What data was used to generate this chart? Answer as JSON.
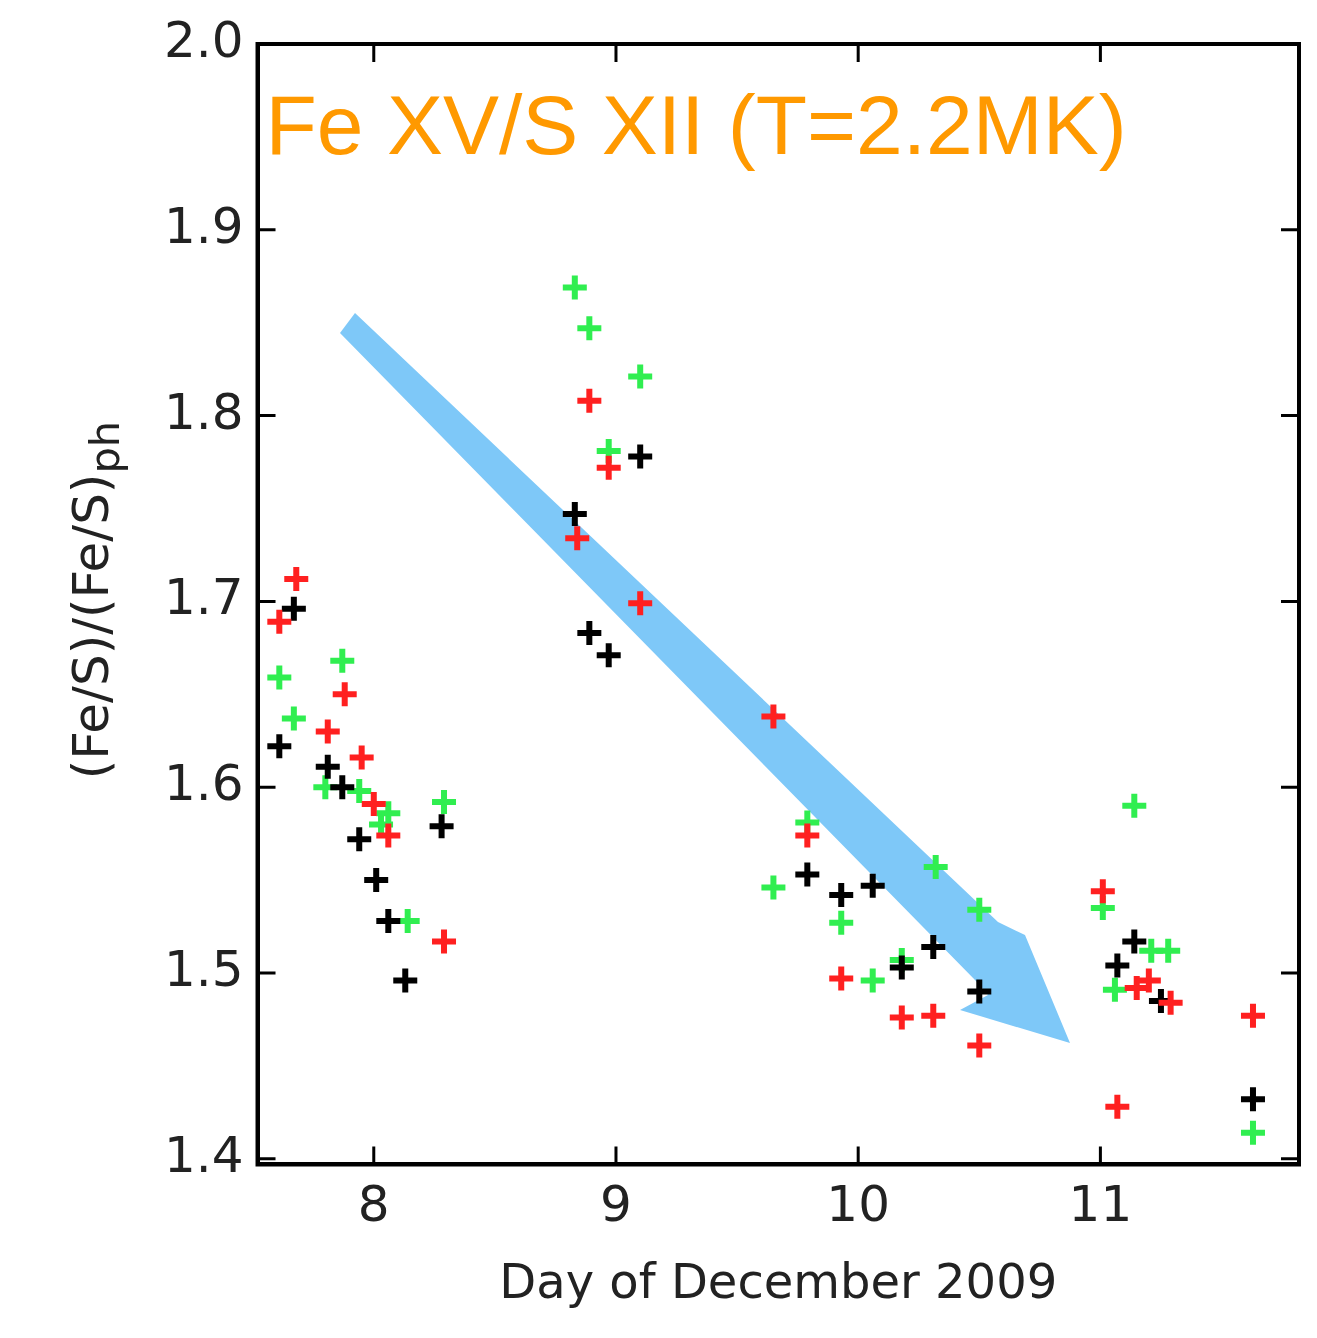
{
  "chart_data": {
    "type": "scatter",
    "xlabel": "Day of December 2009",
    "ylabel": "(Fe/S)/(Fe/S)$_{ph}$",
    "annotations": [
      "Fe XV/S XII (T=2.2MK)"
    ],
    "xlim": [
      7.52,
      11.82
    ],
    "xticks": [
      8,
      9,
      10,
      11
    ],
    "ylim": [
      1.397,
      2.0
    ],
    "yticks": [
      1.4,
      1.5,
      1.6,
      1.7,
      1.8,
      1.9,
      {
        "value": 2,
        "label": "2.0"
      }
    ],
    "grid": false,
    "legend": false,
    "marker": "cross",
    "series": [
      {
        "color": "#ff2020",
        "x": [
          7.61,
          7.68,
          7.81,
          7.88,
          7.95,
          8.0,
          8.06,
          8.29,
          8.89,
          8.97,
          8.84,
          9.1,
          9.65,
          9.79,
          9.93,
          10.18,
          10.31,
          10.5,
          11.01,
          11.15,
          11.2,
          11.29,
          11.63,
          11.07
        ],
        "values": [
          1.689,
          1.712,
          1.63,
          1.65,
          1.616,
          1.591,
          1.574,
          1.517,
          1.808,
          1.772,
          1.734,
          1.699,
          1.638,
          1.574,
          1.497,
          1.476,
          1.477,
          1.461,
          1.544,
          1.492,
          1.496,
          1.484,
          1.477,
          1.428
        ]
      },
      {
        "color": "#000000",
        "x": [
          7.67,
          7.61,
          7.81,
          7.87,
          7.94,
          8.01,
          8.06,
          8.13,
          8.28,
          9.1,
          8.83,
          8.89,
          8.97,
          9.79,
          9.93,
          10.06,
          10.18,
          10.31,
          10.5,
          11.14,
          11.07,
          11.25,
          11.63
        ],
        "values": [
          1.696,
          1.622,
          1.611,
          1.6,
          1.572,
          1.55,
          1.528,
          1.496,
          1.579,
          1.778,
          1.747,
          1.683,
          1.671,
          1.553,
          1.542,
          1.547,
          1.503,
          1.514,
          1.49,
          1.517,
          1.504,
          1.485,
          1.432
        ]
      },
      {
        "color": "#30ee50",
        "x": [
          7.87,
          7.61,
          7.67,
          7.8,
          7.94,
          8.06,
          8.03,
          8.14,
          8.29,
          8.83,
          8.89,
          9.1,
          8.97,
          9.79,
          9.65,
          9.93,
          10.32,
          10.5,
          10.18,
          10.06,
          11.14,
          11.01,
          11.21,
          11.28,
          11.06,
          11.63
        ],
        "values": [
          1.668,
          1.659,
          1.637,
          1.6,
          1.598,
          1.586,
          1.58,
          1.528,
          1.592,
          1.869,
          1.847,
          1.821,
          1.781,
          1.581,
          1.546,
          1.527,
          1.557,
          1.534,
          1.507,
          1.496,
          1.59,
          1.535,
          1.512,
          1.512,
          1.491,
          1.414
        ]
      }
    ]
  }
}
